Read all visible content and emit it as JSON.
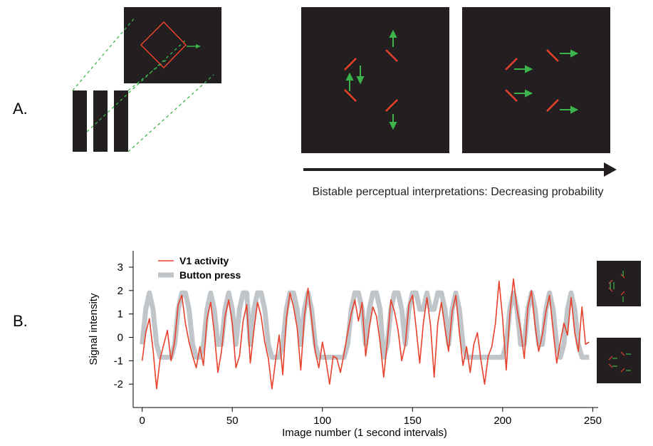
{
  "panel_labels": {
    "a": "A.",
    "b": "B."
  },
  "panel_a": {
    "caption": "Bistable perceptual interpretations: Decreasing probability"
  },
  "chart_data": {
    "type": "line",
    "xlabel": "Image number (1 second intervals)",
    "ylabel": "Signal intensity",
    "xlim": [
      -5,
      253
    ],
    "ylim": [
      -3,
      3.7
    ],
    "xticks": [
      0,
      50,
      100,
      150,
      200,
      250
    ],
    "yticks": [
      -2,
      -1,
      0,
      1,
      2,
      3
    ],
    "legend": "upper left",
    "x": [
      0,
      2,
      4,
      6,
      8,
      10,
      12,
      14,
      16,
      18,
      20,
      22,
      24,
      26,
      28,
      30,
      32,
      34,
      36,
      38,
      40,
      42,
      44,
      46,
      48,
      50,
      52,
      54,
      56,
      58,
      60,
      62,
      64,
      66,
      68,
      70,
      72,
      74,
      76,
      78,
      80,
      82,
      84,
      86,
      88,
      90,
      92,
      94,
      96,
      98,
      100,
      102,
      104,
      106,
      108,
      110,
      112,
      114,
      116,
      118,
      120,
      122,
      124,
      126,
      128,
      130,
      132,
      134,
      136,
      138,
      140,
      142,
      144,
      146,
      148,
      150,
      152,
      154,
      156,
      158,
      160,
      162,
      164,
      166,
      168,
      170,
      172,
      174,
      176,
      178,
      180,
      182,
      184,
      186,
      188,
      190,
      192,
      194,
      196,
      198,
      200,
      202,
      204,
      206,
      208,
      210,
      212,
      214,
      216,
      218,
      220,
      222,
      224,
      226,
      228,
      230,
      232,
      234,
      236,
      238,
      240,
      242,
      244,
      246,
      248
    ],
    "series": [
      {
        "name": "Button press",
        "color": "#bfc5c8",
        "values": [
          -0.3,
          1.2,
          1.9,
          1.2,
          -0.3,
          -0.85,
          -0.85,
          -0.85,
          -0.85,
          -0.3,
          1.2,
          1.9,
          1.9,
          1.2,
          -0.3,
          -0.85,
          -0.85,
          -0.3,
          1.2,
          1.9,
          1.2,
          -0.3,
          -0.3,
          1.2,
          1.9,
          1.2,
          -0.3,
          1.2,
          1.9,
          1.9,
          -0.3,
          1.2,
          1.9,
          1.9,
          1.2,
          -0.3,
          -0.85,
          -0.85,
          -0.85,
          -0.3,
          1.2,
          1.9,
          1.9,
          1.2,
          -0.3,
          1.2,
          1.9,
          1.2,
          -0.3,
          -0.85,
          -0.85,
          -0.85,
          -0.85,
          -0.85,
          -0.85,
          -0.85,
          -0.85,
          -0.3,
          1.2,
          1.9,
          1.9,
          1.2,
          -0.3,
          1.2,
          1.9,
          1.9,
          1.2,
          -0.85,
          -0.3,
          1.2,
          1.9,
          1.9,
          1.2,
          -0.3,
          1.2,
          1.9,
          1.9,
          1.2,
          1.2,
          1.9,
          1.2,
          1.2,
          1.9,
          1.9,
          1.2,
          -0.3,
          1.2,
          1.9,
          1.2,
          -0.3,
          -0.85,
          -0.85,
          -0.85,
          -0.85,
          -0.85,
          -0.85,
          -0.85,
          -0.85,
          -0.85,
          -0.85,
          -0.85,
          -0.3,
          1.2,
          1.9,
          1.2,
          -0.3,
          -0.3,
          1.2,
          1.9,
          1.2,
          -0.3,
          -0.3,
          1.2,
          1.9,
          1.2,
          -0.3,
          -0.85,
          -0.3,
          1.2,
          1.9,
          1.2,
          -0.3,
          -0.85,
          -0.85,
          -0.85
        ]
      },
      {
        "name": "V1 activity",
        "color": "#e8412c",
        "values": [
          -1.0,
          0.2,
          0.8,
          -0.5,
          -2.2,
          -0.9,
          -0.3,
          0.3,
          -1.0,
          -0.2,
          1.4,
          1.8,
          0.6,
          -0.2,
          -0.8,
          -1.3,
          -0.4,
          -1.2,
          0.8,
          1.5,
          0.2,
          -1.5,
          -0.6,
          0.9,
          1.6,
          0.6,
          -1.3,
          -0.8,
          0.7,
          1.4,
          -1.1,
          0.3,
          1.5,
          0.9,
          -0.2,
          -0.9,
          -2.2,
          -1.0,
          0.1,
          -1.6,
          0.8,
          1.9,
          1.3,
          0.4,
          -1.4,
          0.9,
          2.1,
          0.8,
          -0.6,
          -1.3,
          -0.2,
          -1.0,
          -2.0,
          -0.8,
          -0.9,
          -1.5,
          -0.7,
          0.2,
          1.0,
          1.6,
          0.7,
          1.5,
          -0.8,
          0.4,
          1.3,
          0.9,
          -0.2,
          -1.7,
          -0.2,
          1.6,
          1.1,
          0.3,
          -1.0,
          -0.3,
          1.4,
          1.8,
          0.4,
          -1.1,
          0.6,
          1.7,
          0.5,
          -1.7,
          0.6,
          1.5,
          0.4,
          -0.6,
          1.1,
          1.8,
          0.2,
          -1.2,
          -0.4,
          -1.5,
          -0.3,
          0.2,
          -1.0,
          -2.0,
          -0.8,
          -0.4,
          0.6,
          2.4,
          0.8,
          -1.4,
          1.0,
          2.5,
          1.2,
          0.3,
          -0.9,
          1.3,
          2.0,
          0.5,
          -0.6,
          0.1,
          1.1,
          1.8,
          0.3,
          -1.1,
          -0.2,
          0.6,
          0.1,
          1.7,
          0.2,
          -0.6,
          1.3,
          -0.3,
          -0.2
        ]
      }
    ]
  }
}
